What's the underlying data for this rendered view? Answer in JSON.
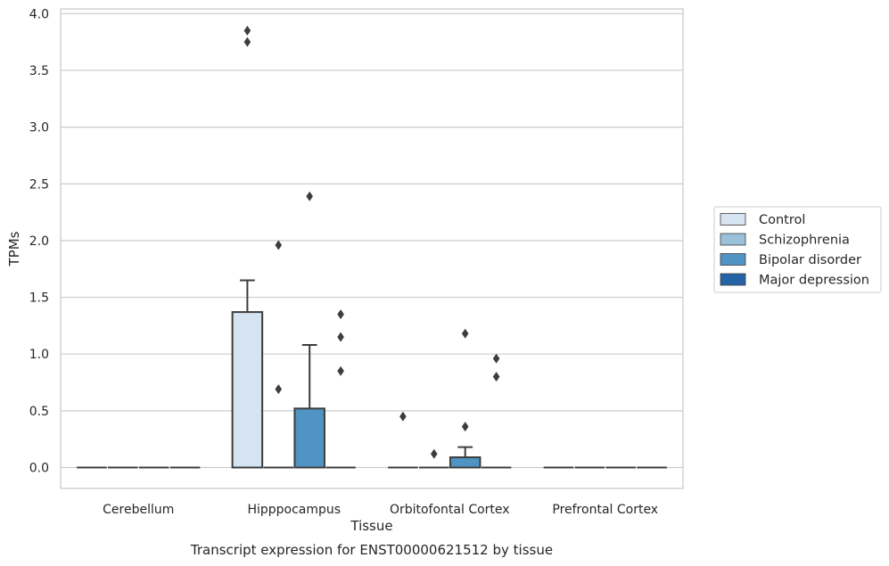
{
  "chart_data": {
    "type": "box",
    "title": "Transcript expression for ENST00000621512 by tissue",
    "xlabel": "Tissue",
    "ylabel": "TPMs",
    "ylim": [
      -0.18,
      4.05
    ],
    "yticks": [
      "0.0",
      "0.5",
      "1.0",
      "1.5",
      "2.0",
      "2.5",
      "3.0",
      "3.5",
      "4.0"
    ],
    "grid": "horizontal",
    "legend_position": "right",
    "categories": [
      "Cerebellum",
      "Hipppocampus",
      "Orbitofontal Cortex",
      "Prefrontal Cortex"
    ],
    "series": [
      {
        "name": "Control",
        "color": "#d6e3f1",
        "boxes": [
          {
            "q1": 0,
            "median": 0,
            "q3": 0,
            "whisker_low": 0,
            "whisker_high": 0,
            "outliers": []
          },
          {
            "q1": 0,
            "median": 0,
            "q3": 1.37,
            "whisker_low": 0,
            "whisker_high": 1.65,
            "outliers": [
              3.75,
              3.85
            ]
          },
          {
            "q1": 0,
            "median": 0,
            "q3": 0,
            "whisker_low": 0,
            "whisker_high": 0,
            "outliers": [
              0.45
            ]
          },
          {
            "q1": 0,
            "median": 0,
            "q3": 0,
            "whisker_low": 0,
            "whisker_high": 0,
            "outliers": []
          }
        ]
      },
      {
        "name": "Schizophrenia",
        "color": "#9ac0da",
        "boxes": [
          {
            "q1": 0,
            "median": 0,
            "q3": 0,
            "whisker_low": 0,
            "whisker_high": 0,
            "outliers": []
          },
          {
            "q1": 0,
            "median": 0,
            "q3": 0,
            "whisker_low": 0,
            "whisker_high": 0,
            "outliers": [
              0.69,
              1.96
            ]
          },
          {
            "q1": 0,
            "median": 0,
            "q3": 0,
            "whisker_low": 0,
            "whisker_high": 0,
            "outliers": [
              0.12
            ]
          },
          {
            "q1": 0,
            "median": 0,
            "q3": 0,
            "whisker_low": 0,
            "whisker_high": 0,
            "outliers": []
          }
        ]
      },
      {
        "name": "Bipolar disorder",
        "color": "#5094c3",
        "boxes": [
          {
            "q1": 0,
            "median": 0,
            "q3": 0,
            "whisker_low": 0,
            "whisker_high": 0,
            "outliers": []
          },
          {
            "q1": 0,
            "median": 0,
            "q3": 0.52,
            "whisker_low": 0,
            "whisker_high": 1.08,
            "outliers": [
              2.39
            ]
          },
          {
            "q1": 0,
            "median": 0,
            "q3": 0.09,
            "whisker_low": 0,
            "whisker_high": 0.18,
            "outliers": [
              0.36,
              1.18
            ]
          },
          {
            "q1": 0,
            "median": 0,
            "q3": 0,
            "whisker_low": 0,
            "whisker_high": 0,
            "outliers": []
          }
        ]
      },
      {
        "name": "Major depression",
        "color": "#2464a6",
        "boxes": [
          {
            "q1": 0,
            "median": 0,
            "q3": 0,
            "whisker_low": 0,
            "whisker_high": 0,
            "outliers": []
          },
          {
            "q1": 0,
            "median": 0,
            "q3": 0,
            "whisker_low": 0,
            "whisker_high": 0,
            "outliers": [
              0.85,
              1.15,
              1.35
            ]
          },
          {
            "q1": 0,
            "median": 0,
            "q3": 0,
            "whisker_low": 0,
            "whisker_high": 0,
            "outliers": [
              0.8,
              0.96
            ]
          },
          {
            "q1": 0,
            "median": 0,
            "q3": 0,
            "whisker_low": 0,
            "whisker_high": 0,
            "outliers": []
          }
        ]
      }
    ]
  }
}
